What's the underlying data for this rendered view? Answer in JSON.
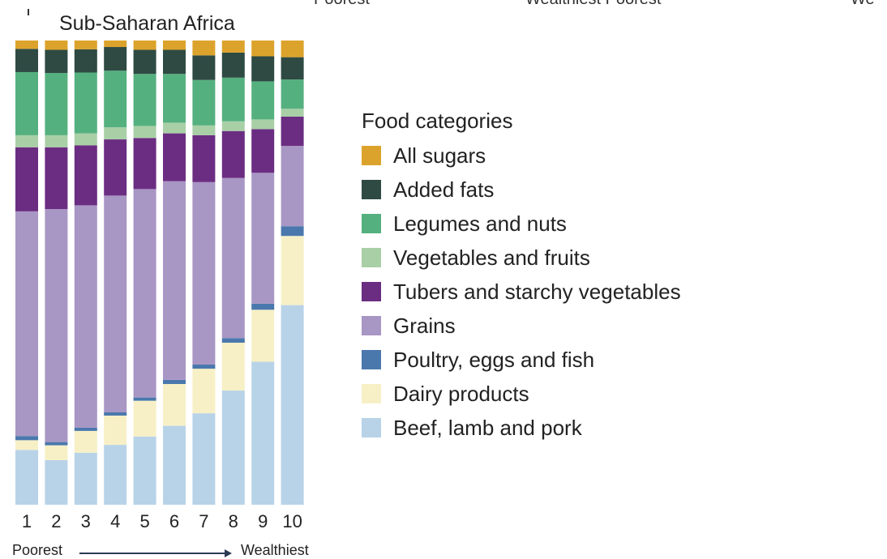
{
  "top_fragments": {
    "left_label": "Poorest",
    "mid_label": "Wealthiest  Poorest",
    "right_label": "We"
  },
  "chart_data": {
    "type": "bar",
    "stacked": true,
    "normalized": true,
    "title": "Sub-Saharan Africa",
    "xlabel": "",
    "ylabel": "",
    "ylim": [
      0,
      100
    ],
    "categories": [
      "1",
      "2",
      "3",
      "4",
      "5",
      "6",
      "7",
      "8",
      "9",
      "10"
    ],
    "axis_start_label": "Poorest",
    "axis_end_label": "Wealthiest",
    "legend_title": "Food categories",
    "legend_position": "right",
    "series": [
      {
        "name": "Beef, lamb and pork",
        "color": "#b8d3e8",
        "values": [
          11.8,
          9.6,
          11.2,
          12.9,
          14.7,
          17.0,
          19.7,
          24.6,
          30.8,
          43.0
        ]
      },
      {
        "name": "Dairy products",
        "color": "#f7f0c6",
        "values": [
          2.1,
          3.2,
          4.7,
          6.3,
          7.7,
          9.0,
          9.6,
          10.3,
          11.2,
          14.9
        ]
      },
      {
        "name": "Poultry, eggs and fish",
        "color": "#4a78ad",
        "values": [
          0.9,
          0.7,
          0.7,
          0.7,
          0.7,
          0.9,
          0.9,
          1.0,
          1.3,
          2.1
        ]
      },
      {
        "name": "Grains",
        "color": "#a896c4",
        "values": [
          48.4,
          50.2,
          47.9,
          46.7,
          44.9,
          42.8,
          39.3,
          34.5,
          28.2,
          17.3
        ]
      },
      {
        "name": "Tubers and starchy vegetables",
        "color": "#6b2d82",
        "values": [
          13.8,
          13.3,
          12.9,
          12.1,
          11.0,
          10.3,
          10.1,
          10.1,
          9.4,
          6.3
        ]
      },
      {
        "name": "Vegetables and fruits",
        "color": "#a9cfa6",
        "values": [
          2.6,
          2.6,
          2.6,
          2.6,
          2.6,
          2.3,
          2.1,
          2.1,
          2.1,
          1.7
        ]
      },
      {
        "name": "Legumes and nuts",
        "color": "#55b07f",
        "values": [
          13.6,
          13.4,
          13.1,
          12.2,
          11.2,
          10.5,
          9.8,
          9.4,
          8.2,
          6.3
        ]
      },
      {
        "name": "Added fats",
        "color": "#2e4a43",
        "values": [
          5.0,
          5.0,
          5.0,
          5.1,
          5.2,
          5.2,
          5.3,
          5.4,
          5.4,
          4.8
        ]
      },
      {
        "name": "All sugars",
        "color": "#dca32c",
        "values": [
          1.8,
          2.0,
          1.9,
          1.4,
          2.0,
          2.0,
          3.2,
          2.6,
          3.4,
          3.6
        ]
      }
    ]
  }
}
